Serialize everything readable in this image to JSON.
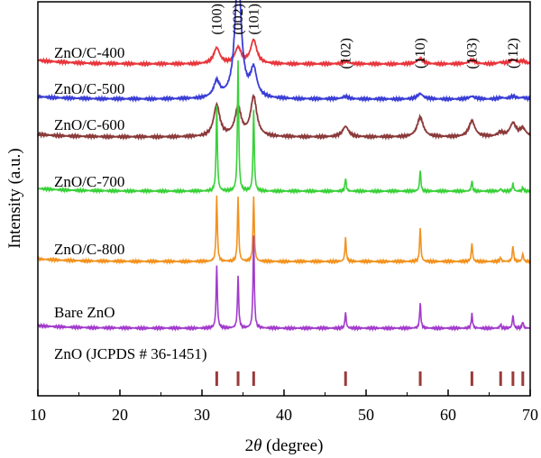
{
  "chart_data": {
    "type": "line",
    "title": "",
    "xlabel": "2θ (degree)",
    "xlabel_prefix": "2",
    "xlabel_theta": "θ",
    "xlabel_suffix": " (degree)",
    "ylabel": "Intensity (a.u.)",
    "xlim": [
      10,
      70
    ],
    "x_ticks": [
      10,
      20,
      30,
      40,
      50,
      60,
      70
    ],
    "y_ticks_shown": false,
    "grid": false,
    "legend": "inline labels, left",
    "peak_positions": [
      31.8,
      34.4,
      36.3,
      47.5,
      56.6,
      62.9,
      66.4,
      67.9,
      69.1
    ],
    "peak_labels": [
      {
        "label": "(100)",
        "x": 31.8
      },
      {
        "label": "(002)",
        "x": 34.4
      },
      {
        "label": "(101)",
        "x": 36.3
      },
      {
        "label": "(102)",
        "x": 47.5
      },
      {
        "label": "(110)",
        "x": 56.6
      },
      {
        "label": "(103)",
        "x": 62.9
      },
      {
        "label": "(112)",
        "x": 67.9
      }
    ],
    "series": [
      {
        "name": "ZnO/C-400",
        "color": "#e8363c",
        "type": "broad",
        "peak_heights": [
          12,
          12,
          18,
          2,
          4,
          3,
          1,
          3,
          2
        ]
      },
      {
        "name": "ZnO/C-500",
        "color": "#3a3ed6",
        "type": "broad",
        "peak_heights": [
          12,
          98,
          21,
          2,
          4,
          2,
          1,
          2,
          1
        ]
      },
      {
        "name": "ZnO/C-600",
        "color": "#8b3a3a",
        "type": "broad",
        "peak_heights": [
          24,
          22,
          30,
          8,
          15,
          12,
          3,
          10,
          6
        ]
      },
      {
        "name": "ZnO/C-700",
        "color": "#39d139",
        "type": "sharp",
        "peak_heights": [
          65,
          100,
          62,
          10,
          16,
          8,
          2,
          6,
          3
        ]
      },
      {
        "name": "ZnO/C-800",
        "color": "#f2921e",
        "type": "sharp",
        "peak_heights": [
          50,
          50,
          50,
          18,
          26,
          14,
          3,
          12,
          6
        ]
      },
      {
        "name": "Bare ZnO",
        "color": "#a23bcc",
        "type": "sharp",
        "peak_heights": [
          48,
          40,
          70,
          12,
          19,
          11,
          3,
          10,
          5
        ]
      }
    ],
    "reference": {
      "name": "ZnO (JCPDS # 36-1451)",
      "color": "#9a3a3a",
      "lines": [
        31.8,
        34.4,
        36.3,
        47.5,
        56.6,
        62.9,
        66.4,
        67.9,
        69.1
      ]
    }
  }
}
